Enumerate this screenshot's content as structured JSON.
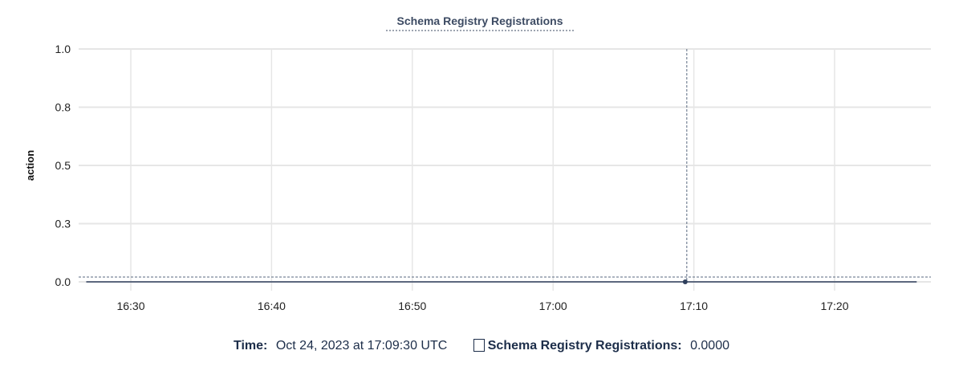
{
  "chart_data": {
    "type": "line",
    "title": "Schema Registry Registrations",
    "ylabel": "action",
    "xlabel": "",
    "y_ticks": [
      "0.0",
      "0.3",
      "0.5",
      "0.8",
      "1.0"
    ],
    "ylim": [
      0,
      1
    ],
    "x_ticks": [
      "16:30",
      "16:40",
      "16:50",
      "17:00",
      "17:10",
      "17:20"
    ],
    "xlim": [
      "16:26:20",
      "17:26:50"
    ],
    "grid": true,
    "series": [
      {
        "name": "Schema Registry Registrations",
        "color": "#2e3f5c",
        "x": [
          "16:26:50",
          "17:09:30",
          "17:25:50"
        ],
        "y": [
          0,
          0,
          0
        ]
      }
    ],
    "hover": {
      "x": "17:09:30",
      "y": 0
    }
  },
  "legend": {
    "time_label": "Time:",
    "time_value": "Oct 24, 2023 at 17:09:30 UTC",
    "series_label": "Schema Registry Registrations:",
    "series_value": "0.0000"
  }
}
